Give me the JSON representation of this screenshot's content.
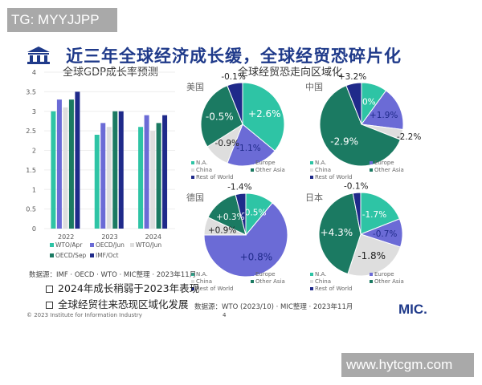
{
  "watermarks": {
    "top": "TG: MYYJJPP",
    "bottom": "www.hytcgm.com"
  },
  "header": {
    "title": "近三年全球经济成长缓，全球经贸恐碎片化",
    "icon": "institution-icon"
  },
  "colors": {
    "teal": "#2ec4a5",
    "periwinkle": "#6b6bd6",
    "light_grey": "#dedede",
    "dark_green": "#1b7a62",
    "navy": "#1f2a8a",
    "title_blue": "#1f3a8a"
  },
  "chart_data": [
    {
      "type": "bar",
      "title": "全球GDP成长率预测",
      "categories": [
        "2022",
        "2023",
        "2024"
      ],
      "ylim": [
        0,
        4
      ],
      "yticks": [
        "0",
        "0.5",
        "1",
        "1.5",
        "2",
        "2.5",
        "3",
        "3.5",
        "4"
      ],
      "grid": true,
      "legend_position": "bottom",
      "series": [
        {
          "name": "WTO/Apr",
          "color": "#2ec4a5",
          "values": [
            3.0,
            2.4,
            2.6
          ]
        },
        {
          "name": "OECD/Jun",
          "color": "#6b6bd6",
          "values": [
            3.3,
            2.7,
            2.9
          ]
        },
        {
          "name": "WTO/Jun",
          "color": "#dedede",
          "values": [
            3.1,
            2.6,
            2.5
          ]
        },
        {
          "name": "OECD/Sep",
          "color": "#1b7a62",
          "values": [
            3.3,
            3.0,
            2.7
          ]
        },
        {
          "name": "IMF/Oct",
          "color": "#1f2a8a",
          "values": [
            3.5,
            3.0,
            2.9
          ]
        }
      ]
    },
    {
      "type": "pie",
      "title": "全球经贸恐走向区域化",
      "categories": [
        "N.A.",
        "Europe",
        "China",
        "Other Asia",
        "Rest of World"
      ],
      "slice_colors": [
        "#2ec4a5",
        "#6b6bd6",
        "#dedede",
        "#1b7a62",
        "#1f2a8a"
      ],
      "pies": [
        {
          "name": "美国",
          "shares": [
            36,
            20,
            10,
            28,
            6
          ],
          "labels": [
            "+2.6%",
            "-1.1%",
            "-0.9%",
            "-0.5%",
            "-0.1%"
          ]
        },
        {
          "name": "中国",
          "shares": [
            10,
            17,
            4,
            63,
            6
          ],
          "labels": [
            "0%",
            "+1.9%",
            "-2.2%",
            "-2.9%",
            "+3.2%"
          ]
        },
        {
          "name": "德国",
          "shares": [
            11,
            64,
            7,
            14,
            4
          ],
          "labels": [
            "-0.5%",
            "+0.8%",
            "+0.9%",
            "+0.3%",
            "-1.4%"
          ]
        },
        {
          "name": "日本",
          "shares": [
            19,
            11,
            25,
            42,
            3
          ],
          "labels": [
            "-1.7%",
            "-0.7%",
            "-1.8%",
            "+4.3%",
            "-0.1%"
          ]
        }
      ]
    }
  ],
  "left_source": "数据源：IMF · OECD · WTO · MIC整理 · 2023年11月",
  "bullets": [
    "2024年成长稍弱于2023年表现",
    "全球经贸往来恐现区域化发展"
  ],
  "copyright": "© 2023 Institute for Information Industry",
  "right_source": "数据源：WTO (2023/10) · MIC整理 · 2023年11月",
  "page_number": "4",
  "logo": "MIC."
}
